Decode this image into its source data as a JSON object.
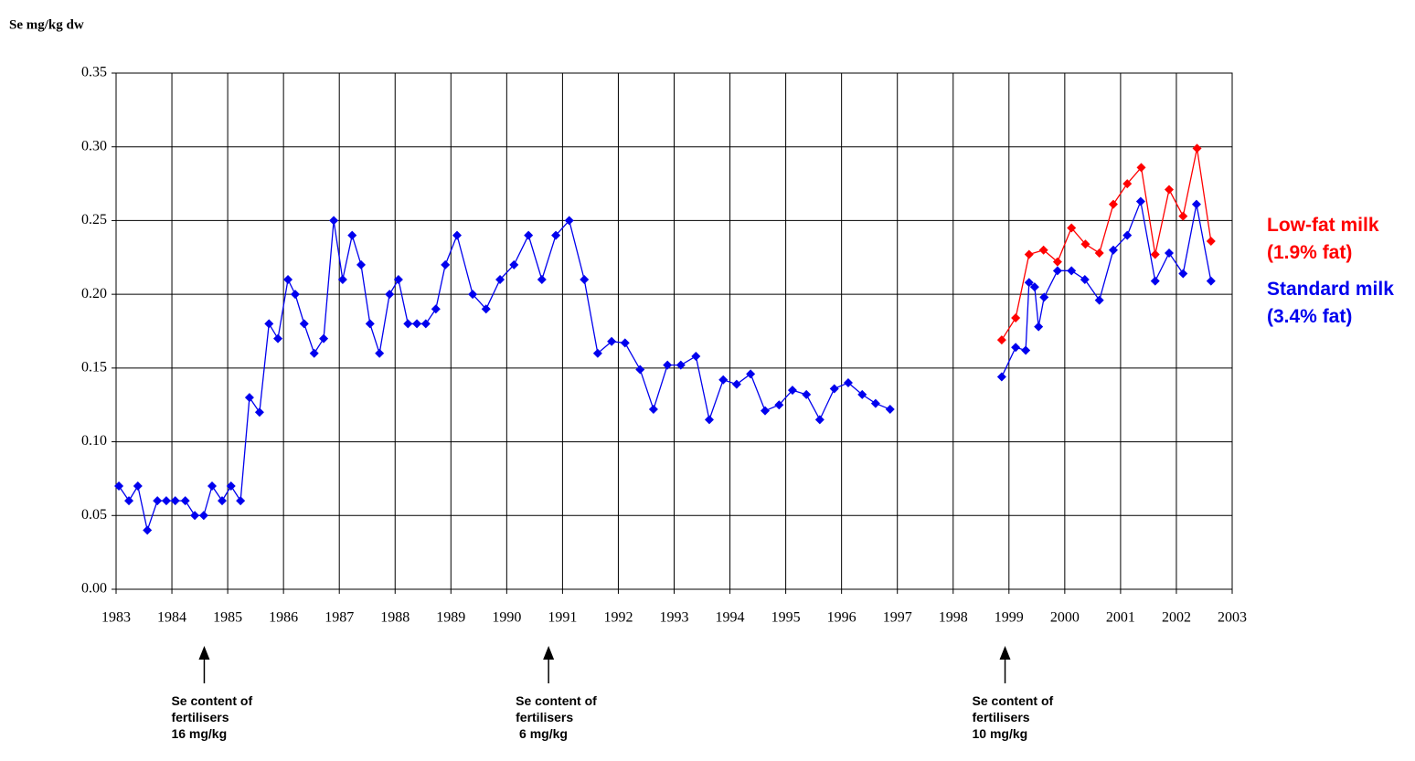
{
  "chart_data": {
    "type": "line",
    "y_label": "Se mg/kg dw",
    "xlim": [
      1983,
      2003
    ],
    "xticks": [
      1983,
      1984,
      1985,
      1986,
      1987,
      1988,
      1989,
      1990,
      1991,
      1992,
      1993,
      1994,
      1995,
      1996,
      1997,
      1998,
      1999,
      2000,
      2001,
      2002,
      2003
    ],
    "ylim": [
      0,
      0.35
    ],
    "yticks": [
      {
        "value": 0,
        "label": "0.00"
      },
      {
        "value": 0.05,
        "label": "0.05"
      },
      {
        "value": 0.1,
        "label": "0.10"
      },
      {
        "value": 0.15,
        "label": "0.15"
      },
      {
        "value": 0.2,
        "label": "0.20"
      },
      {
        "value": 0.25,
        "label": "0.25"
      },
      {
        "value": 0.3,
        "label": "0.30"
      },
      {
        "value": 0.35,
        "label": "0.35"
      }
    ],
    "grid": true,
    "series": [
      {
        "name": "Low-fat milk (1.9% fat)",
        "color": "#ff0000",
        "x": [
          1998.87,
          1999.12,
          1999.36,
          1999.62,
          1999.87,
          2000.12,
          2000.37,
          2000.62,
          2000.87,
          2001.12,
          2001.37,
          2001.62,
          2001.87,
          2002.12,
          2002.37,
          2002.62
        ],
        "values": [
          0.169,
          0.184,
          0.227,
          0.23,
          0.222,
          0.245,
          0.234,
          0.228,
          0.261,
          0.275,
          0.286,
          0.227,
          0.271,
          0.253,
          0.299,
          0.236
        ]
      },
      {
        "name": "Standard milk (3.4% fat)",
        "color": "#0000ee",
        "x": [
          1983.05,
          1983.23,
          1983.39,
          1983.56,
          1983.74,
          1983.9,
          1984.06,
          1984.24,
          1984.41,
          1984.57,
          1984.72,
          1984.9,
          1985.06,
          1985.23,
          1985.39,
          1985.57,
          1985.74,
          1985.9,
          1986.08,
          1986.21,
          1986.37,
          1986.55,
          1986.72,
          1986.9,
          1987.06,
          1987.23,
          1987.39,
          1987.55,
          1987.72,
          1987.9,
          1988.06,
          1988.23,
          1988.39,
          1988.55,
          1988.73,
          1988.9,
          1989.11,
          1989.39,
          1989.63,
          1989.88,
          1990.13,
          1990.39,
          1990.63,
          1990.88,
          1991.12,
          1991.39,
          1991.63,
          1991.88,
          1992.12,
          1992.39,
          1992.63,
          1992.88,
          1993.12,
          1993.39,
          1993.63,
          1993.88,
          1994.12,
          1994.37,
          1994.63,
          1994.88,
          1995.12,
          1995.37,
          1995.61,
          1995.87,
          1996.12,
          1996.37,
          1996.61,
          1996.87,
          1997.87,
          1998.87,
          1999.12,
          1999.3,
          1999.36,
          1999.46,
          1999.53,
          1999.63,
          1999.87,
          2000.12,
          2000.36,
          2000.62,
          2000.87,
          2001.12,
          2001.36,
          2001.62,
          2001.87,
          2002.12,
          2002.36,
          2002.62
        ],
        "values": [
          0.07,
          0.06,
          0.07,
          0.04,
          0.06,
          0.06,
          0.06,
          0.06,
          0.05,
          0.05,
          0.07,
          0.06,
          0.07,
          0.06,
          0.13,
          0.12,
          0.18,
          0.17,
          0.21,
          0.2,
          0.18,
          0.16,
          0.17,
          0.25,
          0.21,
          0.24,
          0.22,
          0.18,
          0.16,
          0.2,
          0.21,
          0.18,
          0.18,
          0.18,
          0.19,
          0.22,
          0.24,
          0.2,
          0.19,
          0.21,
          0.22,
          0.24,
          0.21,
          0.24,
          0.25,
          0.21,
          0.16,
          0.168,
          0.167,
          0.149,
          0.122,
          0.152,
          0.152,
          0.158,
          0.115,
          0.142,
          0.139,
          0.146,
          0.121,
          0.125,
          0.135,
          0.132,
          0.115,
          0.136,
          0.14,
          0.132,
          0.126,
          0.122,
          null,
          0.144,
          0.164,
          0.162,
          0.208,
          0.205,
          0.178,
          0.198,
          0.216,
          0.216,
          0.21,
          0.196,
          0.23,
          0.24,
          0.263,
          0.209,
          0.228,
          0.214,
          0.261,
          0.209
        ]
      }
    ],
    "annotations": [
      {
        "x": 1984.58,
        "lines": [
          "Se content of",
          "fertilisers",
          "16 mg/kg"
        ]
      },
      {
        "x": 1990.75,
        "lines": [
          "Se content of",
          "fertilisers",
          " 6 mg/kg"
        ]
      },
      {
        "x": 1998.93,
        "lines": [
          "Se content of",
          "fertilisers",
          "10 mg/kg"
        ]
      }
    ]
  }
}
